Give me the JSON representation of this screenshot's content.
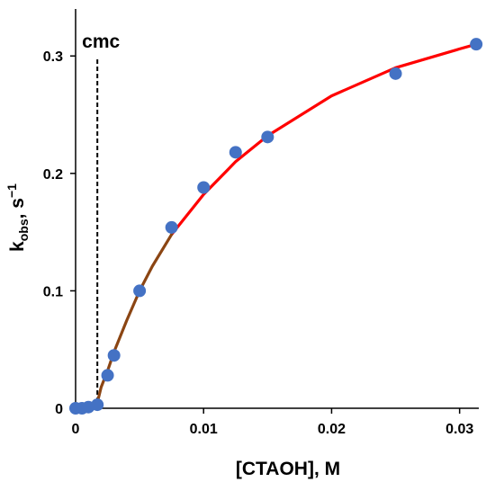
{
  "chart_data": {
    "type": "scatter",
    "xlabel": "[CTAOH], M",
    "ylabel": {
      "base": "k",
      "subscript": "obs",
      "sep": ", s",
      "superscript": "−1"
    },
    "xlim": [
      0,
      0.0315
    ],
    "ylim": [
      0,
      0.34
    ],
    "x_ticks": [
      0,
      0.01,
      0.02,
      0.03
    ],
    "x_tick_labels": [
      "0",
      "0.01",
      "0.02",
      "0.03"
    ],
    "y_ticks": [
      0,
      0.1,
      0.2,
      0.3
    ],
    "y_tick_labels": [
      "0",
      "0.1",
      "0.2",
      "0.3"
    ],
    "grid": false,
    "legend": "none",
    "annotation": {
      "label": "cmc",
      "x": 0.0017
    },
    "points": {
      "color": "#4472C4",
      "x": [
        0.0,
        0.0005,
        0.001,
        0.0017,
        0.0025,
        0.003,
        0.005,
        0.0075,
        0.01,
        0.0125,
        0.015,
        0.025,
        0.0313
      ],
      "y": [
        0.0,
        0.0,
        0.001,
        0.003,
        0.028,
        0.045,
        0.1,
        0.154,
        0.188,
        0.218,
        0.231,
        0.285,
        0.31
      ]
    },
    "fit_curve": {
      "color": "#FF0000",
      "early_color": "#8B4513",
      "early_until_x": 0.0075,
      "x": [
        0.0,
        0.001,
        0.0017,
        0.002,
        0.0025,
        0.003,
        0.004,
        0.005,
        0.006,
        0.0075,
        0.01,
        0.0125,
        0.015,
        0.02,
        0.025,
        0.03,
        0.0313
      ],
      "y": [
        0.0,
        0.002,
        0.005,
        0.018,
        0.032,
        0.048,
        0.075,
        0.1,
        0.121,
        0.148,
        0.182,
        0.21,
        0.232,
        0.266,
        0.29,
        0.306,
        0.31
      ]
    }
  }
}
